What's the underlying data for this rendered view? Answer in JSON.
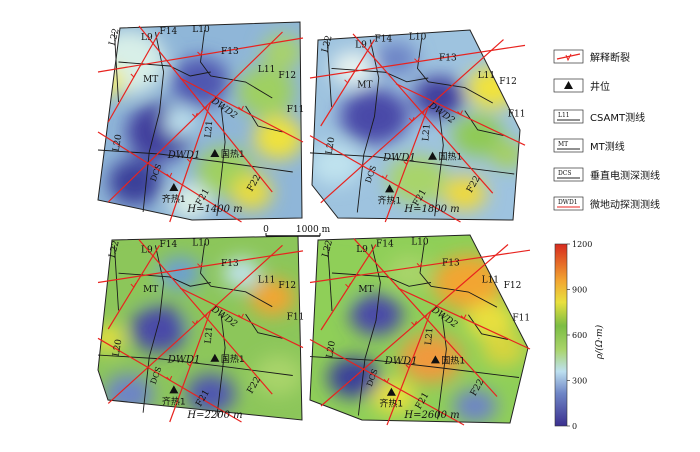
{
  "panels": [
    {
      "depth_label": "H=1400 m"
    },
    {
      "depth_label": "H=1800 m"
    },
    {
      "depth_label": "H=2200 m"
    },
    {
      "depth_label": "H=2600 m"
    }
  ],
  "map_labels": {
    "survey_lines": [
      "L9",
      "L10",
      "L11",
      "L20",
      "L21",
      "L22"
    ],
    "faults": [
      "F11",
      "F12",
      "F13",
      "F14",
      "F21",
      "F22"
    ],
    "mt": "MT",
    "dwd1": "DWD1",
    "dwd2": "DWD2",
    "dcs": "DCS",
    "well_guore": "国热1",
    "well_qire": "齐热1"
  },
  "scale_bar": {
    "zero": "0",
    "dist": "1000 m"
  },
  "legend": [
    {
      "key": "fault",
      "label": "解释断裂",
      "tag": ""
    },
    {
      "key": "well",
      "label": "井位",
      "tag": ""
    },
    {
      "key": "csamt",
      "label": "CSAMT测线",
      "tag": "L11"
    },
    {
      "key": "mt",
      "label": "MT测线",
      "tag": "MT"
    },
    {
      "key": "dcs",
      "label": "垂直电测深测线",
      "tag": "DCS"
    },
    {
      "key": "dwd",
      "label": "微地动探测测线",
      "tag": "DWD1"
    }
  ],
  "colorbar": {
    "ticks": [
      "1200",
      "900",
      "600",
      "300",
      "0"
    ],
    "tick_values": [
      1200,
      900,
      600,
      300,
      0
    ],
    "label": "ρ/(Ω·m)",
    "range": [
      0,
      1200
    ]
  },
  "colors": {
    "fault": "#e8231f",
    "line": "#1a1a1a",
    "low": "#4a4aa8",
    "mid_low": "#b8d8ea",
    "mid": "#7cc24a",
    "high": "#f2e33a",
    "very_high": "#d72a1e"
  }
}
